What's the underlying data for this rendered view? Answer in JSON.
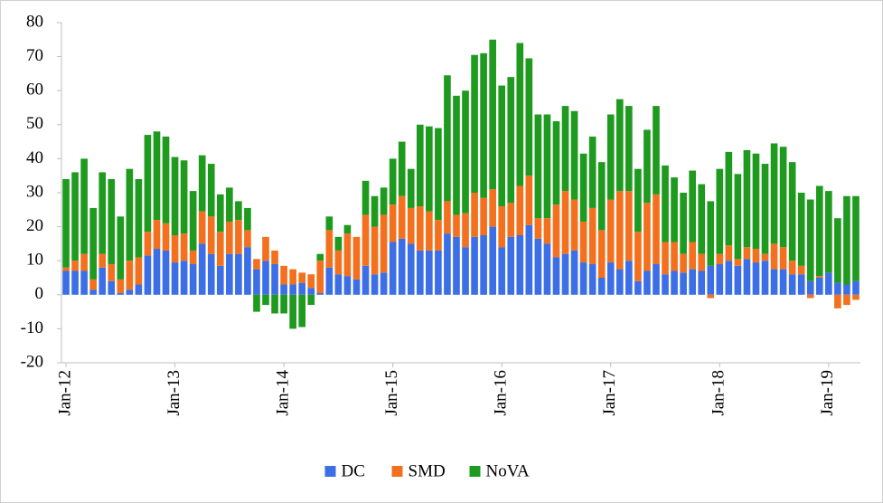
{
  "chart_data": {
    "type": "stacked_bar",
    "categories": [
      "Jan-12",
      null,
      null,
      null,
      null,
      null,
      null,
      null,
      null,
      null,
      null,
      null,
      "Jan-13",
      null,
      null,
      null,
      null,
      null,
      null,
      null,
      null,
      null,
      null,
      null,
      "Jan-14",
      null,
      null,
      null,
      null,
      null,
      null,
      null,
      null,
      null,
      null,
      null,
      "Jan-15",
      null,
      null,
      null,
      null,
      null,
      null,
      null,
      null,
      null,
      null,
      null,
      "Jan-16",
      null,
      null,
      null,
      null,
      null,
      null,
      null,
      null,
      null,
      null,
      null,
      "Jan-17",
      null,
      null,
      null,
      null,
      null,
      null,
      null,
      null,
      null,
      null,
      null,
      "Jan-18",
      null,
      null,
      null,
      null,
      null,
      null,
      null,
      null,
      null,
      null,
      null,
      "Jan-19",
      null,
      null,
      null
    ],
    "series": [
      {
        "name": "DC",
        "color": "#3c6ee6",
        "values": [
          7,
          7,
          7,
          1.5,
          8,
          4,
          0.5,
          1.5,
          3,
          11.5,
          13.5,
          13,
          9.5,
          10,
          9,
          15,
          12,
          8.5,
          12,
          12,
          14,
          7.5,
          10,
          9,
          3,
          3,
          3.5,
          2,
          0.5,
          8,
          6,
          5.5,
          4.5,
          8.5,
          6,
          6.5,
          15.5,
          16.5,
          15,
          13,
          13,
          13,
          18,
          17,
          14,
          17,
          17.5,
          20,
          14,
          17,
          17.5,
          20.5,
          16.5,
          15,
          11,
          12,
          13,
          9.5,
          9,
          5,
          9.5,
          7.5,
          10,
          4,
          7,
          9,
          6,
          7,
          6.5,
          7.5,
          7,
          8.5,
          9,
          10,
          8.5,
          10.5,
          9.5,
          10,
          7.5,
          7.5,
          6,
          6,
          4,
          5,
          6.5,
          3.5,
          3,
          4
        ]
      },
      {
        "name": "SMD",
        "color": "#f3711e",
        "values": [
          1,
          3,
          5,
          3,
          4,
          5,
          4,
          8.5,
          8,
          7,
          8.5,
          8,
          8,
          8,
          4,
          9.5,
          11,
          10,
          9.5,
          10,
          5,
          3,
          7,
          4,
          5.5,
          4.5,
          3,
          4,
          9.5,
          11,
          7,
          12.5,
          12.5,
          15,
          14,
          17,
          11,
          12.5,
          10.5,
          13,
          11.5,
          9,
          9.5,
          6.5,
          10,
          13,
          11,
          11,
          12,
          10,
          14.5,
          14.5,
          6,
          7.5,
          15.5,
          18.5,
          15,
          12,
          16.5,
          14,
          18.5,
          23,
          20.5,
          14.5,
          20,
          20.5,
          9.5,
          8.5,
          5.5,
          8,
          5,
          -1,
          3,
          4.5,
          2,
          3.5,
          4,
          2,
          7.5,
          6.5,
          4,
          2.5,
          -1,
          0.5,
          0,
          -4,
          -3,
          -1.5
        ]
      },
      {
        "name": "NoVA",
        "color": "#1e9a1e",
        "values": [
          26,
          26,
          28,
          21,
          24,
          25,
          18.5,
          27,
          23,
          28.5,
          26,
          25.5,
          23,
          21.5,
          17.5,
          16.5,
          15.5,
          11,
          10,
          5.5,
          6.5,
          -5,
          -3,
          -5.5,
          -5.5,
          -10,
          -9.5,
          -3,
          2,
          4,
          4,
          2.5,
          0,
          10,
          9,
          8,
          13.5,
          16,
          11.5,
          24,
          25,
          27,
          37,
          35,
          36,
          40.5,
          42.5,
          44,
          35.5,
          37,
          42,
          34.5,
          30.5,
          30.5,
          24.5,
          25,
          26,
          20,
          21,
          20,
          25,
          27,
          25,
          18.5,
          21.5,
          26,
          22.5,
          19,
          18,
          21,
          20.5,
          19,
          25,
          27.5,
          25,
          28.5,
          28,
          26.5,
          29.5,
          29.5,
          29,
          21.5,
          24,
          26.5,
          24,
          19,
          26,
          25
        ]
      }
    ],
    "ylim": [
      -20,
      80
    ],
    "yticks": [
      -20,
      -10,
      0,
      10,
      20,
      30,
      40,
      50,
      60,
      70,
      80
    ],
    "legend": "bottom"
  }
}
